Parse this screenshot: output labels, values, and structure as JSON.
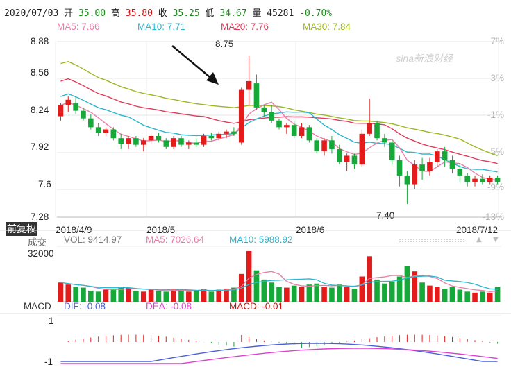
{
  "ticker": {
    "date": "2020/07/03",
    "open_label": "开",
    "open": "35.00",
    "high_label": "高",
    "high": "35.80",
    "close_label": "收",
    "close": "35.25",
    "low_label": "低",
    "low": "34.67",
    "volume_label": "量",
    "volume": "45281",
    "change": "-0.70%"
  },
  "ma_legend": [
    {
      "label": "MA5: 7.66",
      "color": "#e87ea8"
    },
    {
      "label": "MA10: 7.71",
      "color": "#2bb6cf"
    },
    {
      "label": "MA20: 7.76",
      "color": "#e03a5a"
    },
    {
      "label": "MA30: 7.84",
      "color": "#9ab822"
    }
  ],
  "watermark": "sina新浪财经",
  "price_axis": [
    "8.88",
    "8.56",
    "8.24",
    "7.92",
    "7.6",
    "7.28"
  ],
  "percent_axis": [
    "7%",
    "3%",
    "-1%",
    "-5%",
    "-9%",
    "-13%"
  ],
  "annotations": {
    "high": "8.75",
    "low": "7.40"
  },
  "restore_tag": "前复权",
  "dates": [
    "2018/4/9",
    "2018/5",
    "2018/6",
    "2018/7/12"
  ],
  "volume_legend": {
    "title": "成交",
    "vol": "VOL: 9414.97",
    "ma5": "MA5: 7026.64",
    "ma10": "MA10: 5988.92"
  },
  "volume_axis": "32000",
  "macd_legend": {
    "title": "MACD",
    "dif": "DIF: -0.08",
    "dea": "DEA: -0.08",
    "macd": "MACD: -0.01"
  },
  "macd_axis": [
    "1",
    "-1"
  ],
  "colors": {
    "up": "#e31b1b",
    "down": "#17a83a",
    "ma5": "#e87ea8",
    "ma10": "#2bb6cf",
    "ma20": "#e03a5a",
    "ma30": "#9ab822",
    "dif": "#4a5fdb",
    "dea": "#e040d0"
  },
  "chart_data": {
    "type": "candlestick",
    "price_range": [
      7.28,
      8.88
    ],
    "candles": [
      [
        8.2,
        8.32,
        8.16,
        8.3
      ],
      [
        8.3,
        8.38,
        8.24,
        8.35
      ],
      [
        8.32,
        8.38,
        8.22,
        8.25
      ],
      [
        8.25,
        8.28,
        8.16,
        8.18
      ],
      [
        8.18,
        8.22,
        8.08,
        8.1
      ],
      [
        8.1,
        8.14,
        8.02,
        8.05
      ],
      [
        8.05,
        8.1,
        8.02,
        8.08
      ],
      [
        8.08,
        8.1,
        7.98,
        8.0
      ],
      [
        8.0,
        8.04,
        7.9,
        7.95
      ],
      [
        7.95,
        8.02,
        7.9,
        8.0
      ],
      [
        8.0,
        8.02,
        7.92,
        7.94
      ],
      [
        7.94,
        8.0,
        7.88,
        7.98
      ],
      [
        7.98,
        8.04,
        7.95,
        8.02
      ],
      [
        8.02,
        8.05,
        7.96,
        7.98
      ],
      [
        7.98,
        8.0,
        7.9,
        7.92
      ],
      [
        7.92,
        8.02,
        7.9,
        8.0
      ],
      [
        8.0,
        8.02,
        7.92,
        7.94
      ],
      [
        7.94,
        7.98,
        7.9,
        7.96
      ],
      [
        7.96,
        8.0,
        7.92,
        7.94
      ],
      [
        7.94,
        8.04,
        7.92,
        8.02
      ],
      [
        8.02,
        8.05,
        7.98,
        8.0
      ],
      [
        8.0,
        8.06,
        7.98,
        8.04
      ],
      [
        8.04,
        8.08,
        8.0,
        8.06
      ],
      [
        8.06,
        8.1,
        8.02,
        8.04
      ],
      [
        7.96,
        8.46,
        7.94,
        8.44
      ],
      [
        8.44,
        8.75,
        8.3,
        8.52
      ],
      [
        8.5,
        8.58,
        8.26,
        8.28
      ],
      [
        8.28,
        8.3,
        8.2,
        8.24
      ],
      [
        8.24,
        8.3,
        8.14,
        8.16
      ],
      [
        8.16,
        8.18,
        8.08,
        8.1
      ],
      [
        8.1,
        8.14,
        8.04,
        8.12
      ],
      [
        8.12,
        8.16,
        8.0,
        8.02
      ],
      [
        8.02,
        8.14,
        8.0,
        8.1
      ],
      [
        8.1,
        8.12,
        7.96,
        7.98
      ],
      [
        7.98,
        8.0,
        7.86,
        7.88
      ],
      [
        7.88,
        8.0,
        7.84,
        7.98
      ],
      [
        7.98,
        8.02,
        7.86,
        7.9
      ],
      [
        7.9,
        7.94,
        7.76,
        7.78
      ],
      [
        7.78,
        7.86,
        7.7,
        7.84
      ],
      [
        7.84,
        7.86,
        7.72,
        7.76
      ],
      [
        7.76,
        8.08,
        7.74,
        8.04
      ],
      [
        8.04,
        8.36,
        8.02,
        8.14
      ],
      [
        8.14,
        8.16,
        7.98,
        8.0
      ],
      [
        8.0,
        8.04,
        7.92,
        7.96
      ],
      [
        7.96,
        7.98,
        7.76,
        7.8
      ],
      [
        7.8,
        7.84,
        7.56,
        7.66
      ],
      [
        7.66,
        7.7,
        7.4,
        7.58
      ],
      [
        7.58,
        7.8,
        7.54,
        7.76
      ],
      [
        7.76,
        7.82,
        7.62,
        7.7
      ],
      [
        7.7,
        7.82,
        7.66,
        7.78
      ],
      [
        7.78,
        7.9,
        7.74,
        7.88
      ],
      [
        7.88,
        7.92,
        7.74,
        7.8
      ],
      [
        7.8,
        7.84,
        7.68,
        7.72
      ],
      [
        7.72,
        7.76,
        7.6,
        7.66
      ],
      [
        7.66,
        7.68,
        7.56,
        7.6
      ],
      [
        7.6,
        7.66,
        7.56,
        7.63
      ],
      [
        7.63,
        7.67,
        7.58,
        7.6
      ],
      [
        7.6,
        7.66,
        7.58,
        7.64
      ],
      [
        7.64,
        7.66,
        7.58,
        7.6
      ]
    ],
    "volume_range": [
      0,
      32000
    ],
    "macd_range": [
      -1,
      1
    ]
  }
}
